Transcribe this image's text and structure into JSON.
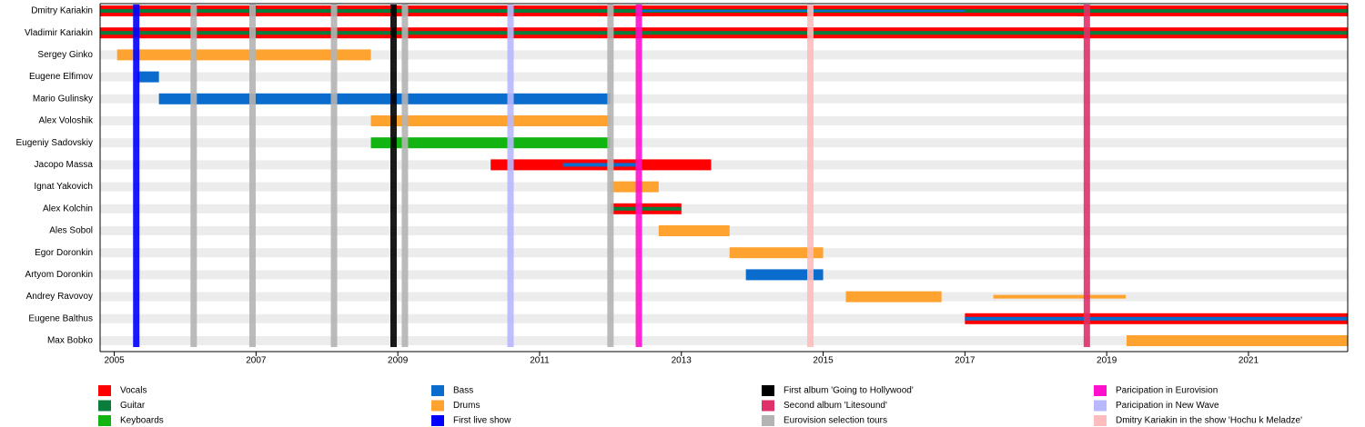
{
  "chart_data": {
    "type": "timeline",
    "xlim": [
      2004.8,
      2022.4
    ],
    "xticks": [
      2005,
      2007,
      2009,
      2011,
      2013,
      2015,
      2017,
      2019,
      2021
    ],
    "roles": [
      {
        "name": "Vocals",
        "color": "#ff0000"
      },
      {
        "name": "Guitar",
        "color": "#0a7d3c"
      },
      {
        "name": "Keyboards",
        "color": "#11b411"
      },
      {
        "name": "Bass",
        "color": "#0a6ccc"
      },
      {
        "name": "Drums",
        "color": "#ffa330"
      }
    ],
    "events": [
      {
        "name": "First live show",
        "color": "#0000ff",
        "dates": [
          2005.31
        ]
      },
      {
        "name": "First album 'Going to Hollywood'",
        "color": "#000000",
        "dates": [
          2008.94
        ]
      },
      {
        "name": "Second album 'Litesound'",
        "color": "#e0306a",
        "dates": [
          2018.72
        ]
      },
      {
        "name": "Eurovision selection tours",
        "color": "#b4b4b4",
        "dates": [
          2006.12,
          2006.95,
          2008.1,
          2009.1,
          2012.0
        ]
      },
      {
        "name": "Paricipation in Eurovision",
        "color": "#ff10cc",
        "dates": [
          2012.4
        ]
      },
      {
        "name": "Paricipation in New Wave",
        "color": "#b8b8ff",
        "dates": [
          2010.59
        ]
      },
      {
        "name": "Dmitry Kariakin in the show 'Hochu k Meladze'",
        "color": "#ffbcbc",
        "dates": [
          2014.82
        ]
      }
    ],
    "members": [
      {
        "name": "Dmitry Kariakin",
        "periods": [
          {
            "role": "Vocals",
            "start": 2004.8,
            "end": 2022.4
          },
          {
            "role": "Guitar",
            "start": 2004.8,
            "end": 2022.4
          },
          {
            "role": "Bass",
            "start": 2012.35,
            "end": 2017.0
          }
        ]
      },
      {
        "name": "Vladimir Kariakin",
        "periods": [
          {
            "role": "Vocals",
            "start": 2004.8,
            "end": 2022.4
          },
          {
            "role": "Guitar",
            "start": 2004.8,
            "end": 2022.4
          }
        ]
      },
      {
        "name": "Sergey Ginko",
        "periods": [
          {
            "role": "Drums",
            "start": 2005.04,
            "end": 2008.62
          }
        ]
      },
      {
        "name": "Eugene Elfimov",
        "periods": [
          {
            "role": "Bass",
            "start": 2005.33,
            "end": 2005.63
          }
        ]
      },
      {
        "name": "Mario Gulinsky",
        "periods": [
          {
            "role": "Bass",
            "start": 2005.63,
            "end": 2012.0
          }
        ]
      },
      {
        "name": "Alex Voloshik",
        "periods": [
          {
            "role": "Drums",
            "start": 2008.62,
            "end": 2012.0
          }
        ]
      },
      {
        "name": "Eugeniy Sadovskiy",
        "periods": [
          {
            "role": "Keyboards",
            "start": 2008.62,
            "end": 2012.0
          }
        ]
      },
      {
        "name": "Jacopo Massa",
        "periods": [
          {
            "role": "Vocals",
            "start": 2010.31,
            "end": 2013.42
          },
          {
            "role": "Bass",
            "start": 2011.33,
            "end": 2012.36
          }
        ]
      },
      {
        "name": "Ignat Yakovich",
        "periods": [
          {
            "role": "Drums",
            "start": 2012.0,
            "end": 2012.68
          }
        ]
      },
      {
        "name": "Alex Kolchin",
        "periods": [
          {
            "role": "Vocals",
            "start": 2012.0,
            "end": 2013.0
          },
          {
            "role": "Guitar",
            "start": 2012.0,
            "end": 2013.0
          }
        ]
      },
      {
        "name": "Ales Sobol",
        "periods": [
          {
            "role": "Drums",
            "start": 2012.68,
            "end": 2013.68
          }
        ]
      },
      {
        "name": "Egor Doronkin",
        "periods": [
          {
            "role": "Drums",
            "start": 2013.68,
            "end": 2015.0
          }
        ]
      },
      {
        "name": "Artyom Doronkin",
        "periods": [
          {
            "role": "Bass",
            "start": 2013.91,
            "end": 2015.0
          }
        ]
      },
      {
        "name": "Andrey Ravovoy",
        "periods": [
          {
            "role": "Drums",
            "start": 2015.32,
            "end": 2016.67
          },
          {
            "role": "Drums",
            "start": 2017.4,
            "end": 2019.27
          }
        ]
      },
      {
        "name": "Eugene Balthus",
        "periods": [
          {
            "role": "Vocals",
            "start": 2017.0,
            "end": 2022.4
          },
          {
            "role": "Bass",
            "start": 2017.0,
            "end": 2022.4
          }
        ]
      },
      {
        "name": "Max Bobko",
        "periods": [
          {
            "role": "Drums",
            "start": 2019.28,
            "end": 2022.4
          }
        ]
      }
    ]
  }
}
